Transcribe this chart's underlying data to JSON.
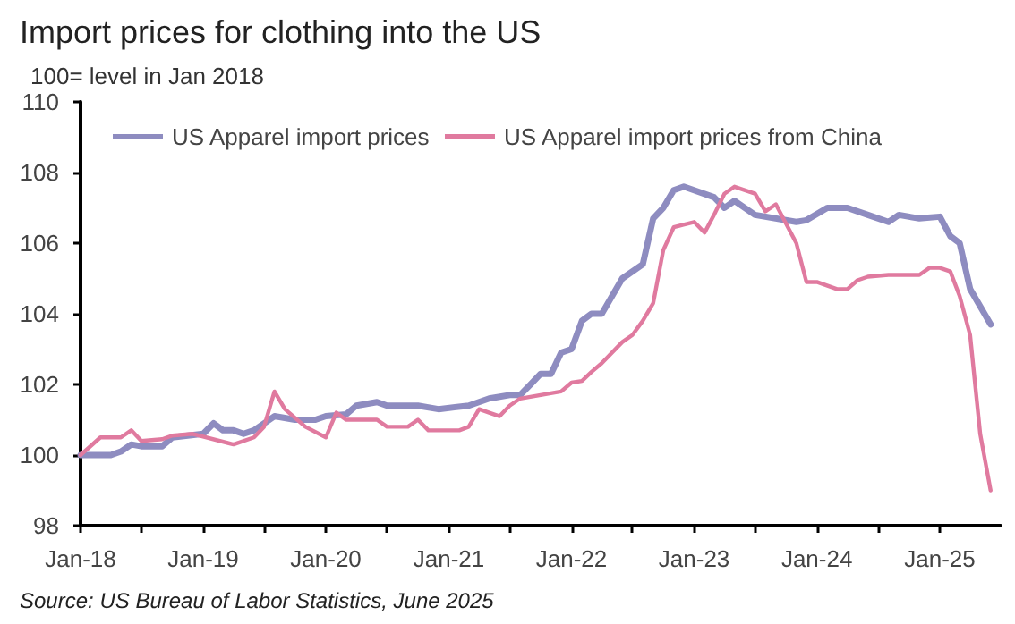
{
  "chart_data": {
    "type": "line",
    "title": "Import prices for clothing into the US",
    "subtitle": "100= level in Jan 2018",
    "annotations": [
      "Source: US Bureau of Labor Statistics, June 2025"
    ],
    "legend": "top",
    "xlim": [
      "2018-01",
      "2025-07"
    ],
    "xticks": [
      {
        "value": "2018-01",
        "label": "Jan-18"
      },
      {
        "value": "2018-07",
        "label": null
      },
      {
        "value": "2019-01",
        "label": "Jan-19"
      },
      {
        "value": "2019-07",
        "label": null
      },
      {
        "value": "2020-01",
        "label": "Jan-20"
      },
      {
        "value": "2020-07",
        "label": null
      },
      {
        "value": "2021-01",
        "label": "Jan-21"
      },
      {
        "value": "2021-07",
        "label": null
      },
      {
        "value": "2022-01",
        "label": "Jan-22"
      },
      {
        "value": "2022-07",
        "label": null
      },
      {
        "value": "2023-01",
        "label": "Jan-23"
      },
      {
        "value": "2023-07",
        "label": null
      },
      {
        "value": "2024-01",
        "label": "Jan-24"
      },
      {
        "value": "2024-07",
        "label": null
      },
      {
        "value": "2025-01",
        "label": "Jan-25"
      }
    ],
    "ylim": [
      98,
      110
    ],
    "yticks": [
      98,
      100,
      102,
      104,
      106,
      108,
      110
    ],
    "series": [
      {
        "name": "US Apparel import prices",
        "color": "#8e8cc0",
        "x": [
          "2018-01",
          "2018-04",
          "2018-05",
          "2018-06",
          "2018-07",
          "2018-09",
          "2018-10",
          "2019-01",
          "2019-02",
          "2019-03",
          "2019-04",
          "2019-05",
          "2019-06",
          "2019-08",
          "2019-10",
          "2019-12",
          "2020-01",
          "2020-03",
          "2020-04",
          "2020-06",
          "2020-07",
          "2020-10",
          "2020-12",
          "2021-03",
          "2021-05",
          "2021-07",
          "2021-08",
          "2021-09",
          "2021-10",
          "2021-11",
          "2021-12",
          "2022-01",
          "2022-02",
          "2022-03",
          "2022-04",
          "2022-06",
          "2022-08",
          "2022-09",
          "2022-10",
          "2022-11",
          "2022-12",
          "2023-03",
          "2023-04",
          "2023-05",
          "2023-07",
          "2023-11",
          "2023-12",
          "2024-02",
          "2024-04",
          "2024-06",
          "2024-08",
          "2024-09",
          "2024-11",
          "2025-01",
          "2025-02",
          "2025-03",
          "2025-04",
          "2025-06"
        ],
        "values": [
          100,
          100,
          100.1,
          100.3,
          100.25,
          100.25,
          100.5,
          100.6,
          100.9,
          100.7,
          100.7,
          100.6,
          100.7,
          101.1,
          101,
          101,
          101.1,
          101.15,
          101.4,
          101.5,
          101.4,
          101.4,
          101.3,
          101.4,
          101.6,
          101.7,
          101.7,
          102,
          102.3,
          102.3,
          102.9,
          103,
          103.8,
          104,
          104,
          105,
          105.4,
          106.7,
          107,
          107.5,
          107.6,
          107.3,
          107,
          107.2,
          106.8,
          106.6,
          106.65,
          107,
          107,
          106.8,
          106.6,
          106.8,
          106.7,
          106.75,
          106.2,
          106,
          104.7,
          103.7
        ]
      },
      {
        "name": "US Apparel import prices from China",
        "color": "#e07a9f",
        "x": [
          "2018-01",
          "2018-03",
          "2018-05",
          "2018-06",
          "2018-07",
          "2018-09",
          "2018-10",
          "2018-12",
          "2019-04",
          "2019-06",
          "2019-07",
          "2019-08",
          "2019-09",
          "2019-11",
          "2020-01",
          "2020-02",
          "2020-03",
          "2020-06",
          "2020-07",
          "2020-09",
          "2020-10",
          "2020-11",
          "2021-02",
          "2021-03",
          "2021-04",
          "2021-05",
          "2021-06",
          "2021-07",
          "2021-08",
          "2021-10",
          "2021-12",
          "2022-01",
          "2022-02",
          "2022-03",
          "2022-04",
          "2022-06",
          "2022-07",
          "2022-08",
          "2022-09",
          "2022-10",
          "2022-11",
          "2023-01",
          "2023-02",
          "2023-03",
          "2023-04",
          "2023-05",
          "2023-07",
          "2023-08",
          "2023-09",
          "2023-11",
          "2023-12",
          "2024-01",
          "2024-03",
          "2024-04",
          "2024-05",
          "2024-06",
          "2024-08",
          "2024-11",
          "2024-12",
          "2025-01",
          "2025-02",
          "2025-03",
          "2025-04",
          "2025-05",
          "2025-06"
        ],
        "values": [
          100,
          100.5,
          100.5,
          100.7,
          100.4,
          100.45,
          100.55,
          100.6,
          100.3,
          100.5,
          100.8,
          101.8,
          101.3,
          100.8,
          100.5,
          101.2,
          101,
          101,
          100.8,
          100.8,
          101,
          100.7,
          100.7,
          100.8,
          101.3,
          101.2,
          101.1,
          101.4,
          101.6,
          101.7,
          101.8,
          102.05,
          102.1,
          102.35,
          102.6,
          103.2,
          103.4,
          103.8,
          104.3,
          105.8,
          106.45,
          106.6,
          106.3,
          106.8,
          107.4,
          107.6,
          107.4,
          106.9,
          107.1,
          106,
          104.9,
          104.9,
          104.7,
          104.7,
          104.95,
          105.05,
          105.1,
          105.1,
          105.3,
          105.3,
          105.2,
          104.5,
          103.4,
          100.6,
          99
        ]
      }
    ]
  }
}
